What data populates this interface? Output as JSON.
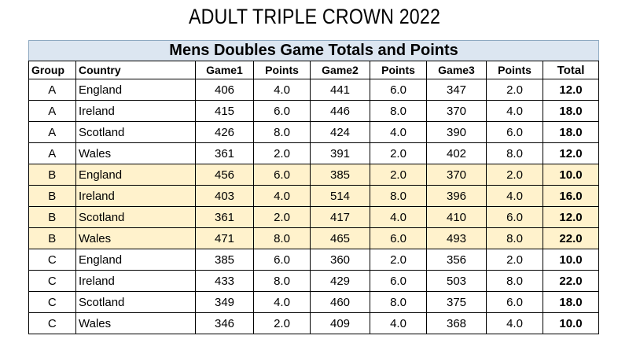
{
  "title": "ADULT TRIPLE CROWN 2022",
  "table": {
    "caption": "Mens Doubles Game Totals and Points",
    "columns": [
      "Group",
      "Country",
      "Game1",
      "Points",
      "Game2",
      "Points",
      "Game3",
      "Points",
      "Total"
    ],
    "rows": [
      {
        "group": "A",
        "country": "England",
        "game1": "406",
        "points1": "4.0",
        "game2": "441",
        "points2": "6.0",
        "game3": "347",
        "points3": "2.0",
        "total": "12.0"
      },
      {
        "group": "A",
        "country": "Ireland",
        "game1": "415",
        "points1": "6.0",
        "game2": "446",
        "points2": "8.0",
        "game3": "370",
        "points3": "4.0",
        "total": "18.0"
      },
      {
        "group": "A",
        "country": "Scotland",
        "game1": "426",
        "points1": "8.0",
        "game2": "424",
        "points2": "4.0",
        "game3": "390",
        "points3": "6.0",
        "total": "18.0"
      },
      {
        "group": "A",
        "country": "Wales",
        "game1": "361",
        "points1": "2.0",
        "game2": "391",
        "points2": "2.0",
        "game3": "402",
        "points3": "8.0",
        "total": "12.0"
      },
      {
        "group": "B",
        "country": "England",
        "game1": "456",
        "points1": "6.0",
        "game2": "385",
        "points2": "2.0",
        "game3": "370",
        "points3": "2.0",
        "total": "10.0"
      },
      {
        "group": "B",
        "country": "Ireland",
        "game1": "403",
        "points1": "4.0",
        "game2": "514",
        "points2": "8.0",
        "game3": "396",
        "points3": "4.0",
        "total": "16.0"
      },
      {
        "group": "B",
        "country": "Scotland",
        "game1": "361",
        "points1": "2.0",
        "game2": "417",
        "points2": "4.0",
        "game3": "410",
        "points3": "6.0",
        "total": "12.0"
      },
      {
        "group": "B",
        "country": "Wales",
        "game1": "471",
        "points1": "8.0",
        "game2": "465",
        "points2": "6.0",
        "game3": "493",
        "points3": "8.0",
        "total": "22.0"
      },
      {
        "group": "C",
        "country": "England",
        "game1": "385",
        "points1": "6.0",
        "game2": "360",
        "points2": "2.0",
        "game3": "356",
        "points3": "2.0",
        "total": "10.0"
      },
      {
        "group": "C",
        "country": "Ireland",
        "game1": "433",
        "points1": "8.0",
        "game2": "429",
        "points2": "6.0",
        "game3": "503",
        "points3": "8.0",
        "total": "22.0"
      },
      {
        "group": "C",
        "country": "Scotland",
        "game1": "349",
        "points1": "4.0",
        "game2": "460",
        "points2": "8.0",
        "game3": "375",
        "points3": "6.0",
        "total": "18.0"
      },
      {
        "group": "C",
        "country": "Wales",
        "game1": "346",
        "points1": "2.0",
        "game2": "409",
        "points2": "4.0",
        "game3": "368",
        "points3": "4.0",
        "total": "10.0"
      }
    ]
  },
  "colors": {
    "caption_background": "#dce6f1",
    "group_b_highlight": "#fff2cc",
    "border": "#000000"
  }
}
